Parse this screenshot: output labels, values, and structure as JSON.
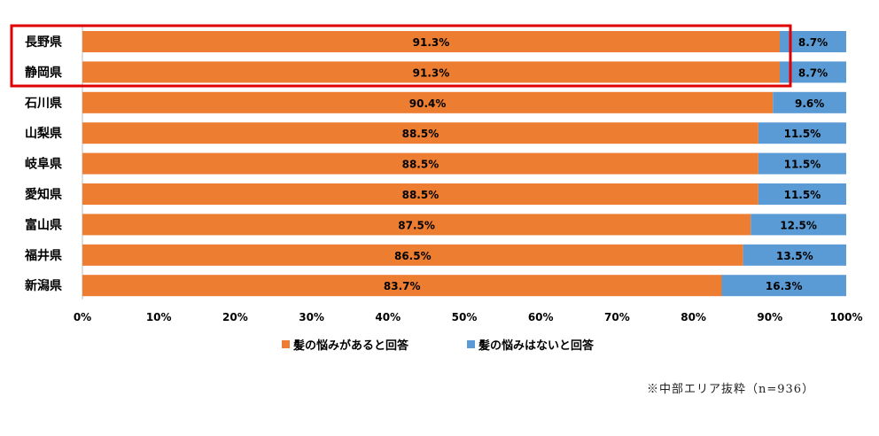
{
  "chart_data": {
    "type": "bar",
    "orientation": "horizontal",
    "stacked": true,
    "categories": [
      "長野県",
      "静岡県",
      "石川県",
      "山梨県",
      "岐阜県",
      "愛知県",
      "富山県",
      "福井県",
      "新潟県"
    ],
    "series": [
      {
        "name": "髪の悩みがあると回答",
        "color": "#ED7D31",
        "values": [
          91.3,
          91.3,
          90.4,
          88.5,
          88.5,
          88.5,
          87.5,
          86.5,
          83.7
        ],
        "labels": [
          "91.3%",
          "91.3%",
          "90.4%",
          "88.5%",
          "88.5%",
          "88.5%",
          "87.5%",
          "86.5%",
          "83.7%"
        ]
      },
      {
        "name": "髪の悩みはないと回答",
        "color": "#5B9BD5",
        "values": [
          8.7,
          8.7,
          9.6,
          11.5,
          11.5,
          11.5,
          12.5,
          13.5,
          16.3
        ],
        "labels": [
          "8.7%",
          "8.7%",
          "9.6%",
          "11.5%",
          "11.5%",
          "11.5%",
          "12.5%",
          "13.5%",
          "16.3%"
        ]
      }
    ],
    "xlim": [
      0,
      100
    ],
    "xticks": [
      "0%",
      "10%",
      "20%",
      "30%",
      "40%",
      "50%",
      "60%",
      "70%",
      "80%",
      "90%",
      "100%"
    ],
    "legend_position": "bottom",
    "highlight": {
      "categories": [
        "長野県",
        "静岡県"
      ],
      "color": "#E00000"
    }
  },
  "note": "※中部エリア抜粋（n=936）"
}
